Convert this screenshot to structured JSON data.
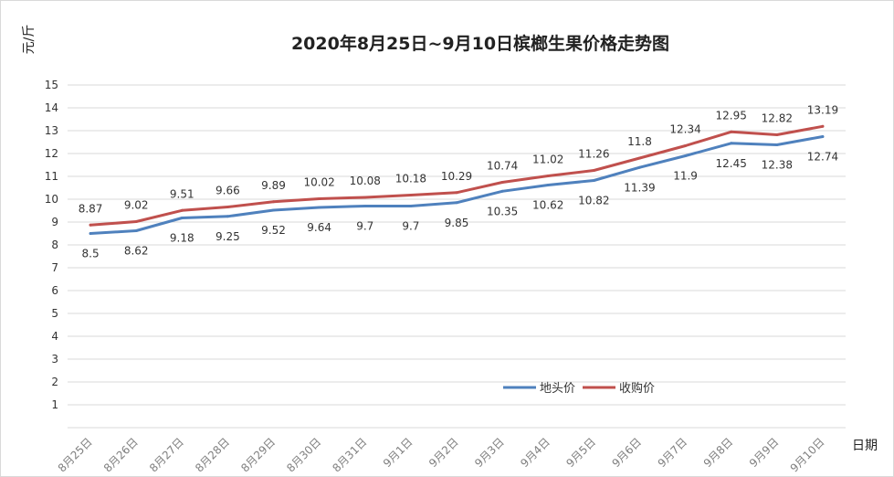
{
  "chart_data": {
    "type": "line",
    "title": "2020年8月25日~9月10日槟榔生果价格走势图",
    "ylabel": "元/斤",
    "xlabel": "日期",
    "ylim": [
      0,
      15
    ],
    "yticks": [
      1,
      2,
      3,
      4,
      5,
      6,
      7,
      8,
      9,
      10,
      11,
      12,
      13,
      14,
      15
    ],
    "grid": true,
    "legend_position": "bottom-right",
    "categories": [
      "8月25日",
      "8月26日",
      "8月27日",
      "8月28日",
      "8月29日",
      "8月30日",
      "8月31日",
      "9月1日",
      "9月2日",
      "9月3日",
      "9月4日",
      "9月5日",
      "9月6日",
      "9月7日",
      "9月8日",
      "9月9日",
      "9月10日"
    ],
    "series": [
      {
        "name": "地头价",
        "color": "#4f81bd",
        "values": [
          8.5,
          8.62,
          9.18,
          9.25,
          9.52,
          9.64,
          9.7,
          9.7,
          9.85,
          10.35,
          10.62,
          10.82,
          11.39,
          11.9,
          12.45,
          12.38,
          12.74
        ],
        "labels": [
          "8.5",
          "8.62",
          "9.18",
          "9.25",
          "9.52",
          "9.64",
          "9.7",
          "9.7",
          "9.85",
          "10.35",
          "10.62",
          "10.82",
          "11.39",
          "11.9",
          "12.45",
          "12.38",
          "12.74"
        ]
      },
      {
        "name": "收购价",
        "color": "#c0504d",
        "values": [
          8.87,
          9.02,
          9.51,
          9.66,
          9.89,
          10.02,
          10.08,
          10.18,
          10.29,
          10.74,
          11.02,
          11.26,
          11.8,
          12.34,
          12.95,
          12.82,
          13.19
        ],
        "labels": [
          "8.87",
          "9.02",
          "9.51",
          "9.66",
          "9.89",
          "10.02",
          "10.08",
          "10.18",
          "10.29",
          "10.74",
          "11.02",
          "11.26",
          "11.8",
          "12.34",
          "12.95",
          "12.82",
          "13.19"
        ]
      }
    ]
  }
}
